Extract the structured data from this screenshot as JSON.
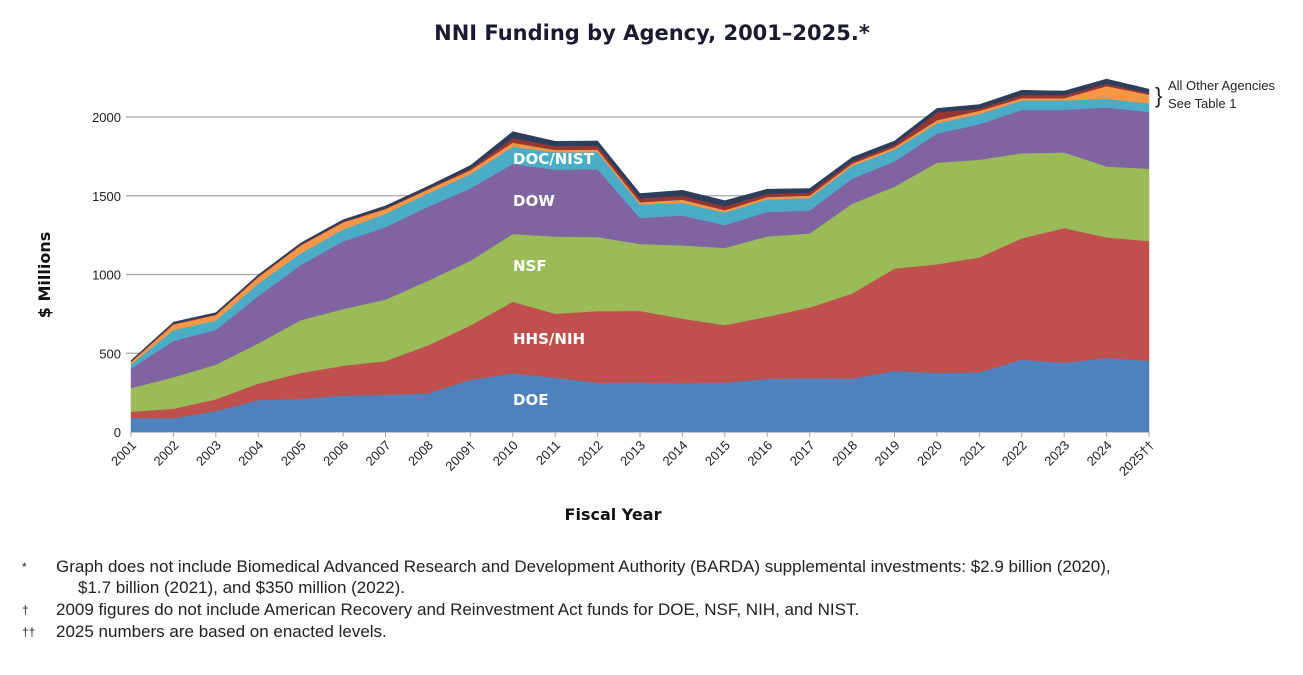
{
  "chart_data": {
    "type": "area",
    "stacked": true,
    "title": "NNI Funding by Agency, 2001–2025.*",
    "xlabel": "Fiscal Year",
    "ylabel": "$ Millions",
    "ylim": [
      0,
      2000
    ],
    "yticks": [
      0,
      500,
      1000,
      1500,
      2000
    ],
    "grid": true,
    "categories": [
      "2001",
      "2002",
      "2003",
      "2004",
      "2005",
      "2006",
      "2007",
      "2008",
      "2009†",
      "2010",
      "2011",
      "2012",
      "2013",
      "2014",
      "2015",
      "2016",
      "2017",
      "2018",
      "2019",
      "2020",
      "2021",
      "2022",
      "2023",
      "2024",
      "2025††"
    ],
    "series": [
      {
        "name": "DOE",
        "color": "#4f81bd",
        "values": [
          89,
          88,
          133,
          203,
          210,
          231,
          236,
          245,
          332,
          372,
          346,
          313,
          314,
          310,
          314,
          337,
          341,
          339,
          388,
          375,
          379,
          460,
          440,
          471,
          452
        ]
      },
      {
        "name": "HHS/NIH",
        "color": "#c0504d",
        "values": [
          40,
          60,
          75,
          105,
          165,
          190,
          215,
          305,
          345,
          455,
          405,
          455,
          455,
          410,
          365,
          395,
          450,
          540,
          650,
          690,
          730,
          770,
          855,
          765,
          760
        ]
      },
      {
        "name": "NSF",
        "color": "#9bbb59",
        "values": [
          150,
          200,
          220,
          255,
          335,
          360,
          390,
          410,
          410,
          430,
          490,
          470,
          425,
          465,
          490,
          510,
          470,
          570,
          520,
          645,
          620,
          540,
          480,
          450,
          460
        ]
      },
      {
        "name": "DOW",
        "color": "#8064a2",
        "values": [
          125,
          230,
          220,
          300,
          350,
          430,
          460,
          470,
          460,
          445,
          425,
          430,
          165,
          190,
          145,
          155,
          145,
          160,
          160,
          185,
          225,
          275,
          270,
          375,
          360
        ]
      },
      {
        "name": "DOC/NIST",
        "color": "#4bacc6",
        "values": [
          25,
          70,
          60,
          80,
          75,
          75,
          85,
          85,
          90,
          110,
          110,
          110,
          85,
          80,
          80,
          80,
          80,
          80,
          75,
          65,
          65,
          60,
          60,
          55,
          55
        ]
      },
      {
        "color": "#f79646",
        "values": [
          15,
          35,
          35,
          40,
          50,
          45,
          30,
          25,
          25,
          25,
          15,
          15,
          15,
          20,
          15,
          15,
          15,
          15,
          15,
          20,
          20,
          15,
          15,
          80,
          55
        ]
      },
      {
        "color": "#943634",
        "values": [
          5,
          5,
          5,
          5,
          5,
          5,
          5,
          5,
          10,
          30,
          25,
          25,
          25,
          25,
          25,
          20,
          20,
          15,
          15,
          50,
          15,
          20,
          20,
          15,
          10
        ]
      },
      {
        "color": "#2c3e5c",
        "values": [
          5,
          10,
          10,
          10,
          10,
          12,
          15,
          15,
          20,
          40,
          30,
          30,
          30,
          35,
          35,
          30,
          25,
          25,
          25,
          25,
          25,
          30,
          25,
          30,
          25
        ]
      }
    ],
    "annotation": {
      "line1": "All Other Agencies",
      "line2": "See Table 1",
      "brace": "}"
    }
  },
  "footnotes": [
    {
      "symbol": "*",
      "lines": [
        "Graph does not include Biomedical Advanced Research and Development Authority (BARDA) supplemental investments: $2.9 billion (2020),",
        "$1.7 billion (2021), and $350 million (2022)."
      ]
    },
    {
      "symbol": "†",
      "lines": [
        "2009 figures do not include American Recovery and Reinvestment Act funds for DOE, NSF, NIH, and NIST."
      ]
    },
    {
      "symbol": "††",
      "lines": [
        "2025 numbers are based on enacted levels."
      ]
    }
  ]
}
